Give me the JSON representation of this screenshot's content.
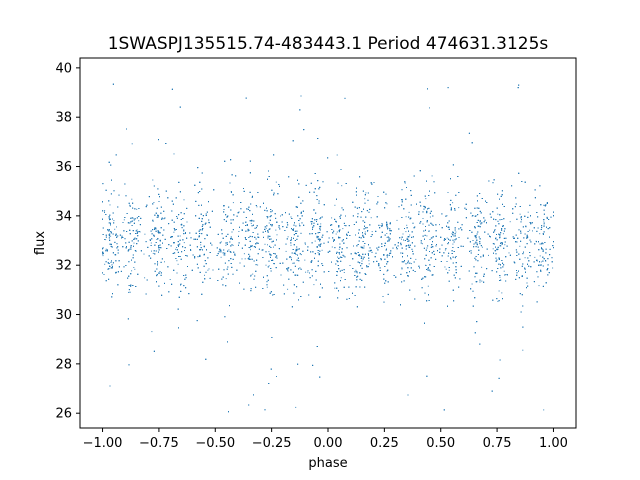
{
  "chart_data": {
    "type": "scatter",
    "title": "1SWASPJ135515.74-483443.1 Period 474631.3125s",
    "xlabel": "phase",
    "ylabel": "flux",
    "xlim": [
      -1.1,
      1.1
    ],
    "ylim": [
      25.4,
      40.4
    ],
    "x_ticks": [
      -1.0,
      -0.75,
      -0.5,
      -0.25,
      0.0,
      0.25,
      0.5,
      0.75,
      1.0
    ],
    "x_tick_labels": [
      "−1.00",
      "−0.75",
      "−0.50",
      "−0.25",
      "0.00",
      "0.25",
      "0.50",
      "0.75",
      "1.00"
    ],
    "y_ticks": [
      26,
      28,
      30,
      32,
      34,
      36,
      38,
      40
    ],
    "y_tick_labels": [
      "26",
      "28",
      "30",
      "32",
      "34",
      "36",
      "38",
      "40"
    ],
    "grid": false,
    "point_color": "#1f77b4",
    "series": [
      {
        "description_of_distribution": "dense band of points between flux ~30.5 and ~35.5 centered near 33, repeating clusters across phase -1 to 1, sparse outliers extending from 26 to 39.7",
        "x_range": [
          -1.0,
          1.0
        ],
        "flux_center": 33.0,
        "flux_core_range": [
          30.5,
          35.5
        ],
        "flux_outlier_range": [
          26.0,
          39.7
        ],
        "cluster_phases": [
          -0.97,
          -0.87,
          -0.76,
          -0.66,
          -0.56,
          -0.45,
          -0.35,
          -0.25,
          -0.15,
          -0.05,
          0.05,
          0.15,
          0.25,
          0.35,
          0.45,
          0.55,
          0.66,
          0.76,
          0.86,
          0.96
        ]
      }
    ]
  }
}
